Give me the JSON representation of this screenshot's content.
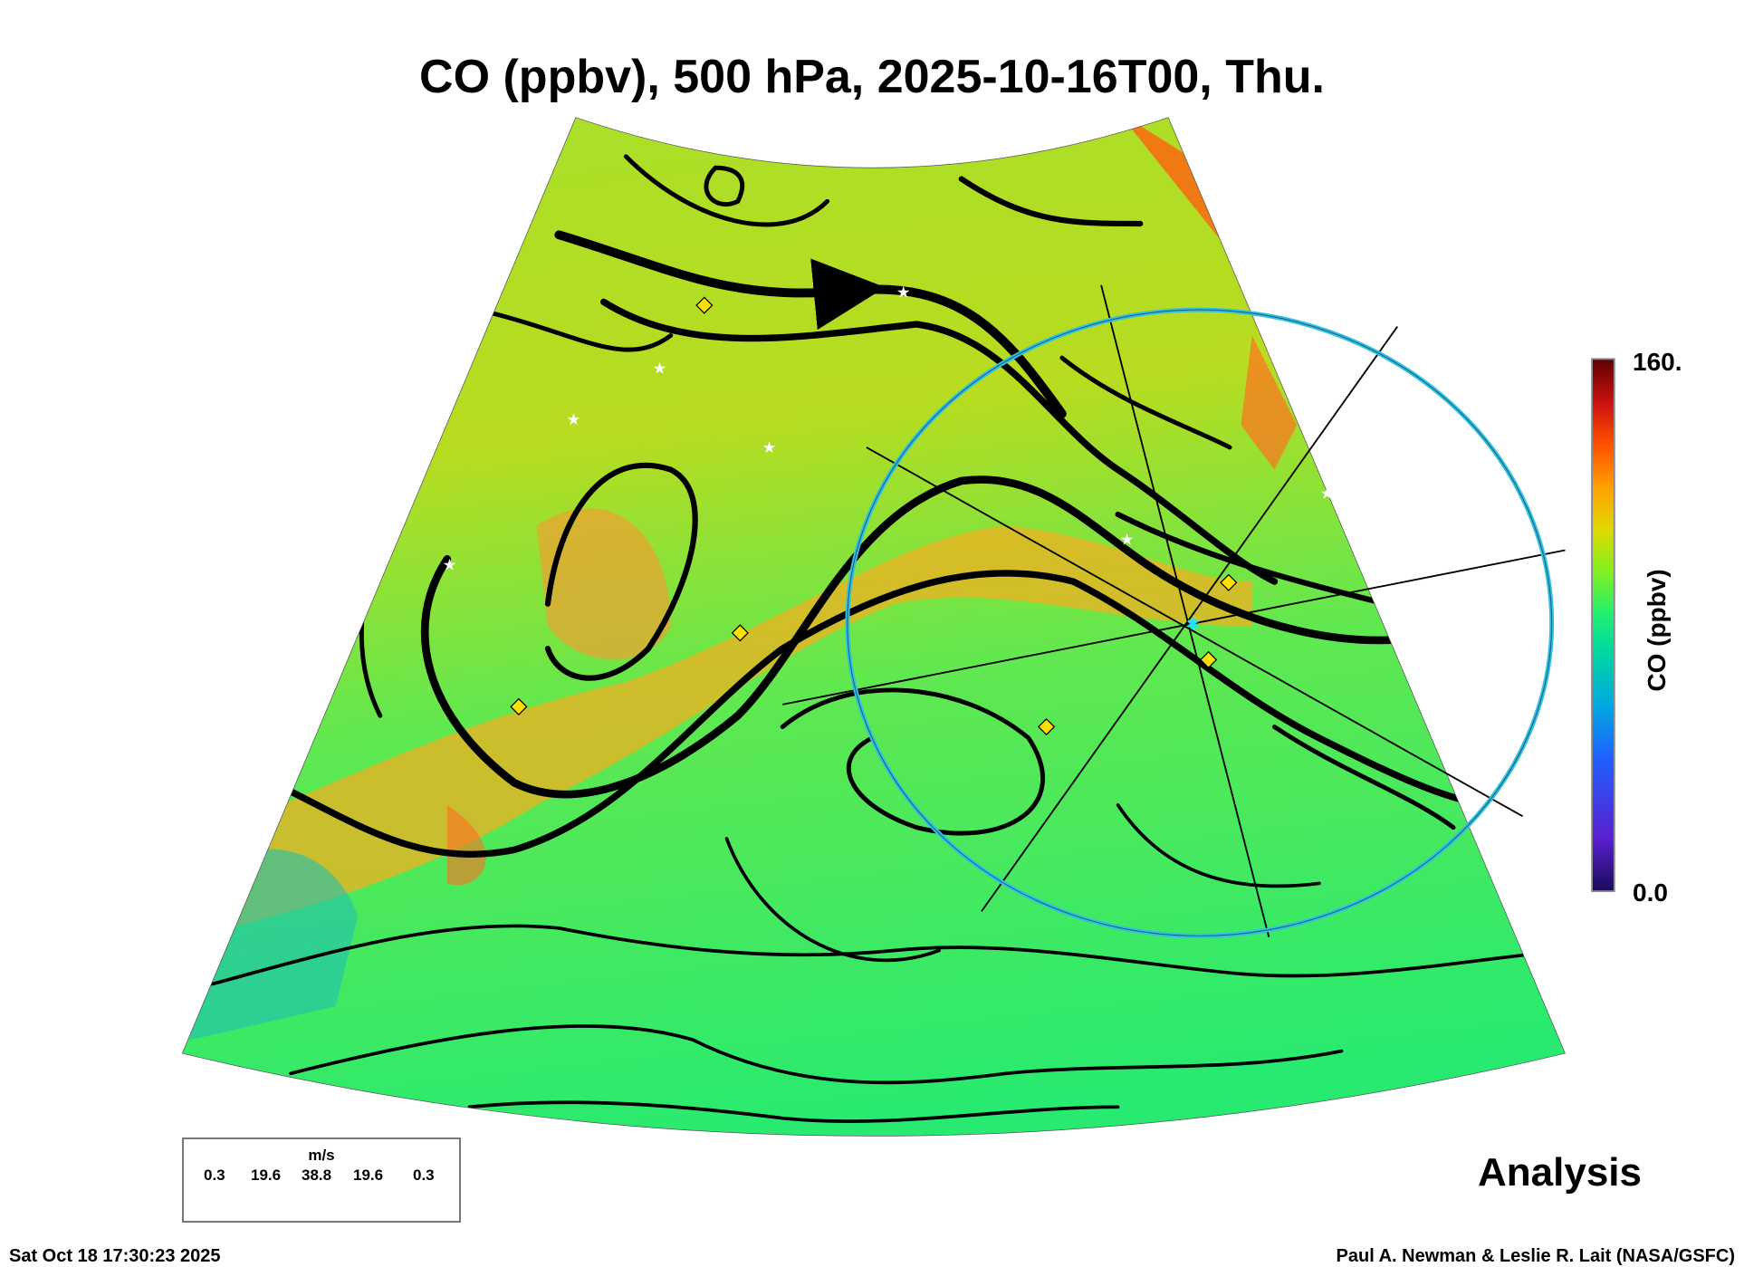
{
  "title": "CO (ppbv), 500 hPa, 2025-10-16T00, Thu.",
  "colorbar": {
    "max_label": "160.",
    "min_label": "0.0",
    "label": "CO (ppbv)",
    "min": 0,
    "max": 160,
    "colors": [
      "#1a0a5a",
      "#5a20d0",
      "#2060ff",
      "#00a8e0",
      "#00d8a0",
      "#20f070",
      "#80f020",
      "#e0d800",
      "#ffa000",
      "#ff5000",
      "#c81010",
      "#600000"
    ]
  },
  "legend": {
    "unit": "m/s",
    "values": [
      "0.3",
      "19.6",
      "38.8",
      "19.6",
      "0.3"
    ]
  },
  "product_label": "Analysis",
  "timestamp": "Sat Oct 18 17:30:23 2025",
  "credit": "Paul A. Newman & Leslie R. Lait (NASA/GSFC)"
}
